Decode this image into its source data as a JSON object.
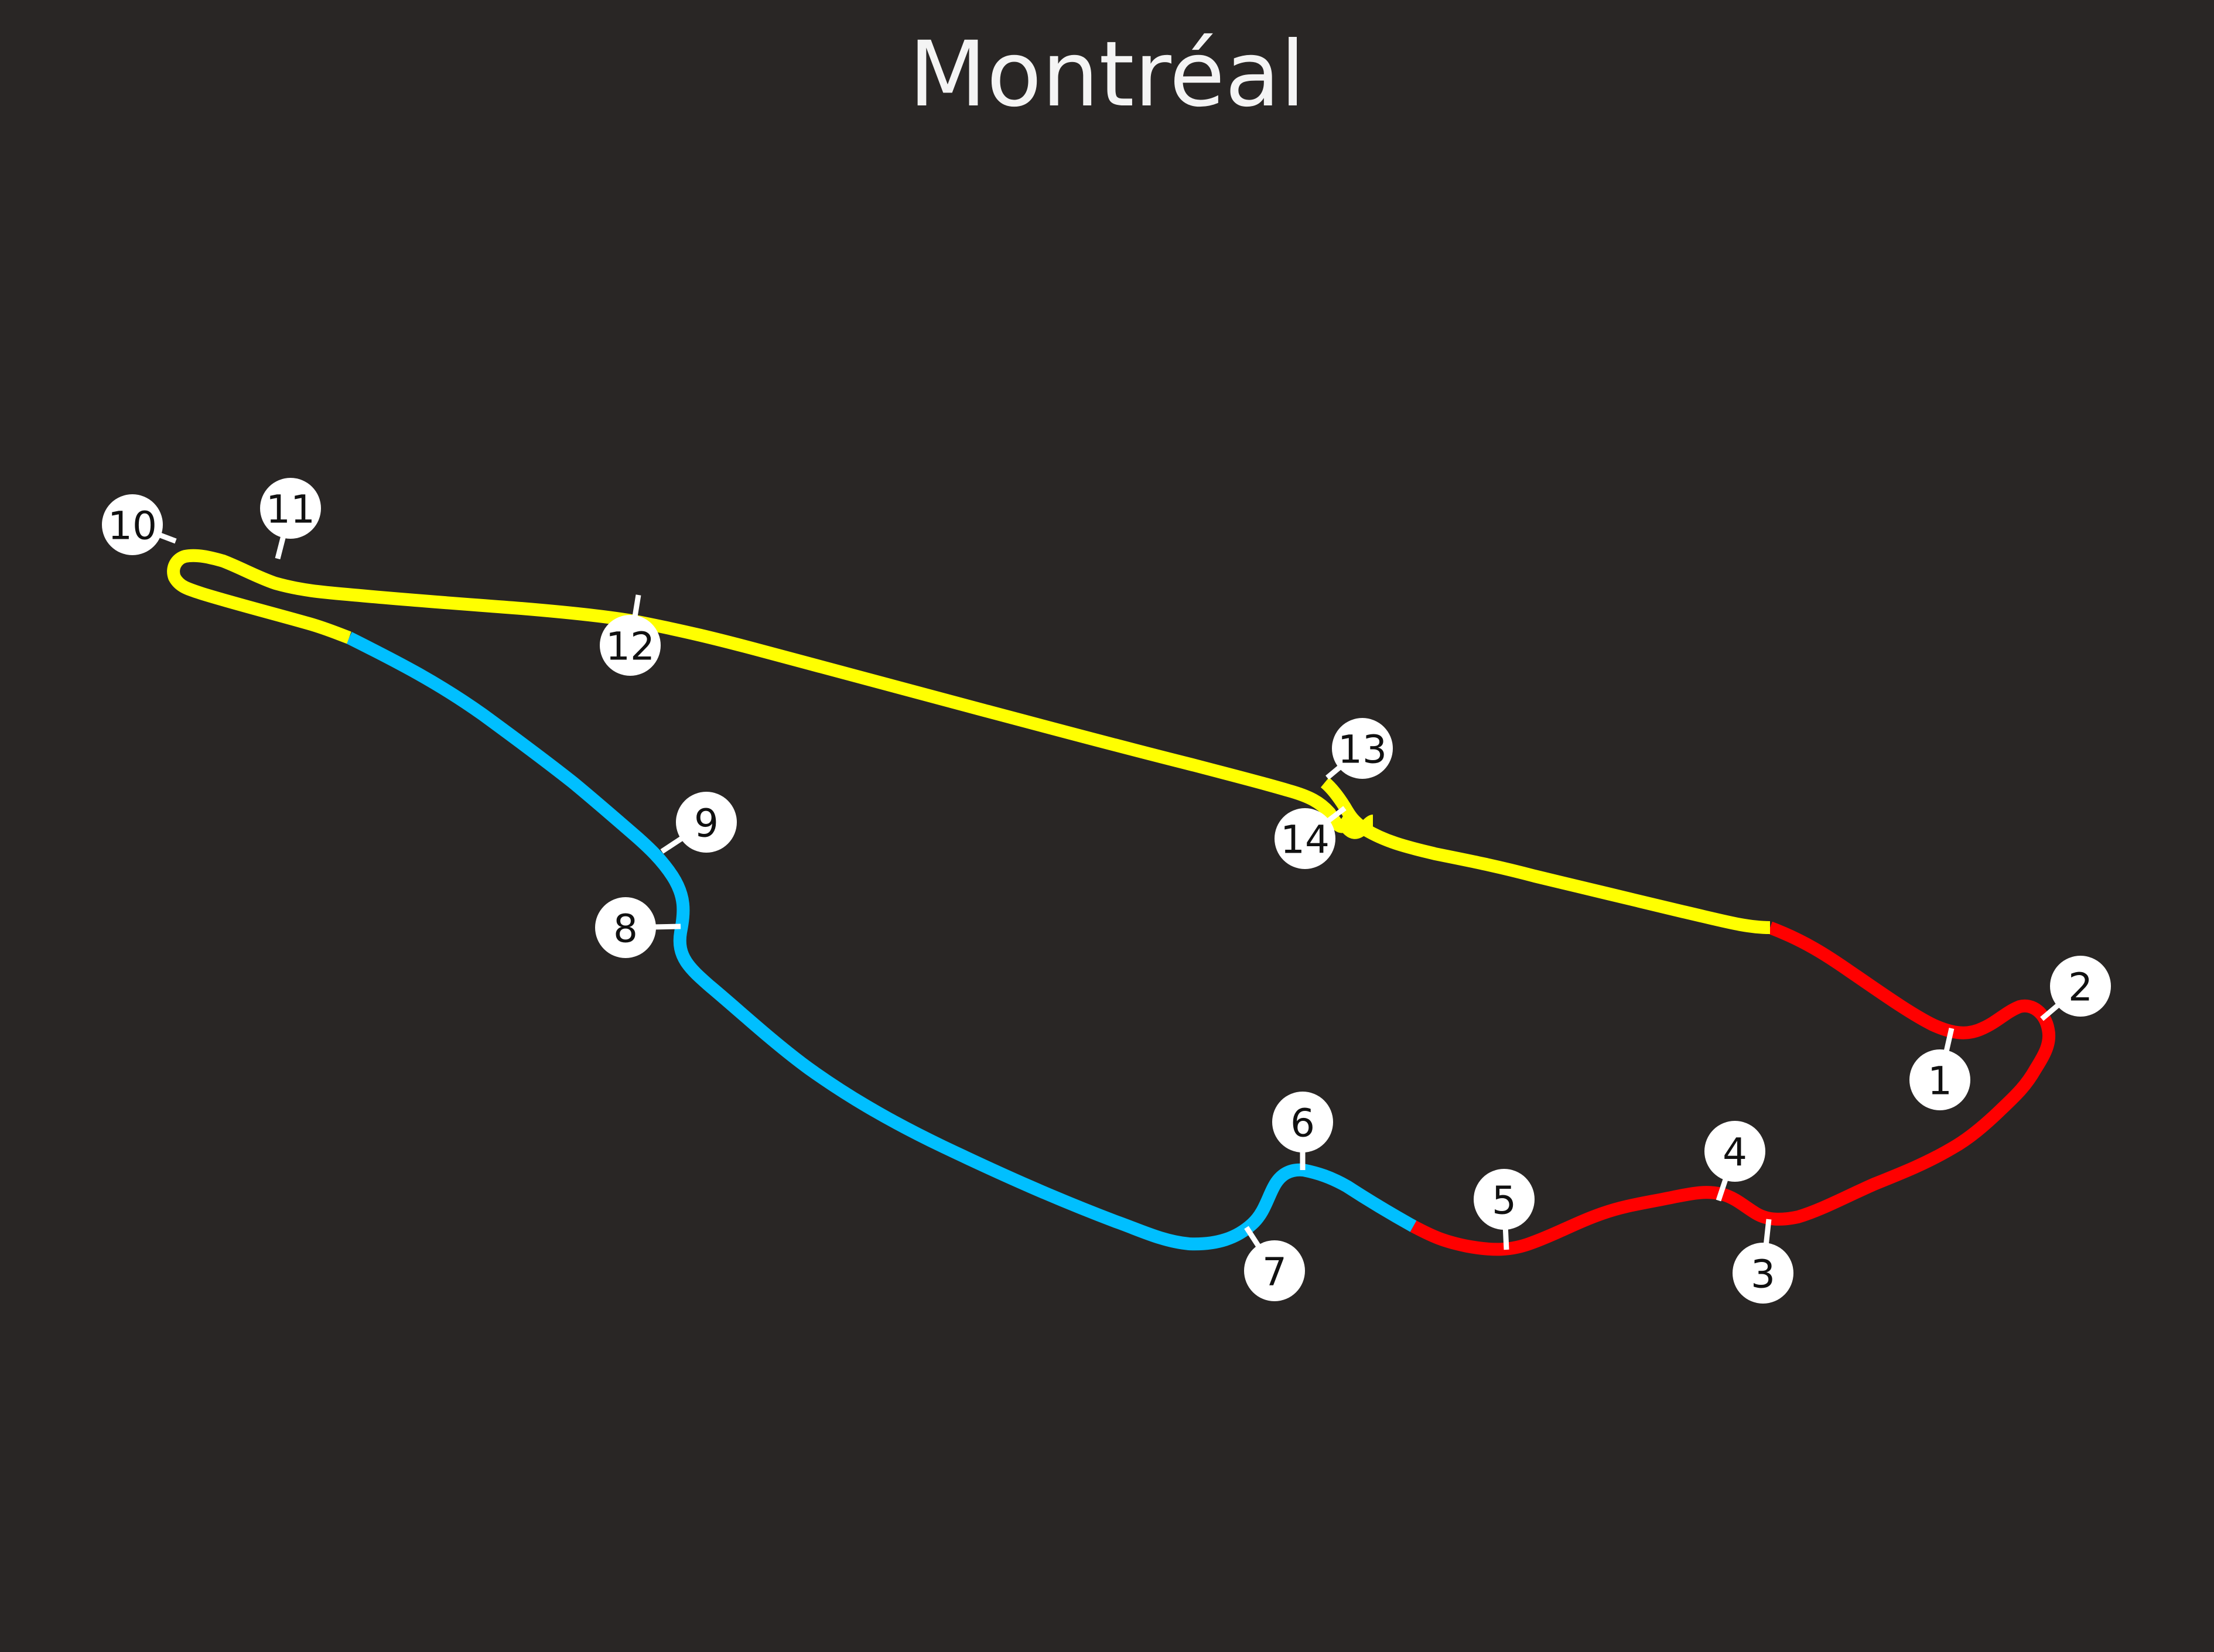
{
  "title": "Montréal",
  "sector_colors": {
    "sector_1": "#ff0000",
    "sector_2": "#00bfff",
    "sector_3": "#ffff00"
  },
  "corners": [
    "1",
    "2",
    "3",
    "4",
    "5",
    "6",
    "7",
    "8",
    "9",
    "10",
    "11",
    "12",
    "13",
    "14"
  ]
}
